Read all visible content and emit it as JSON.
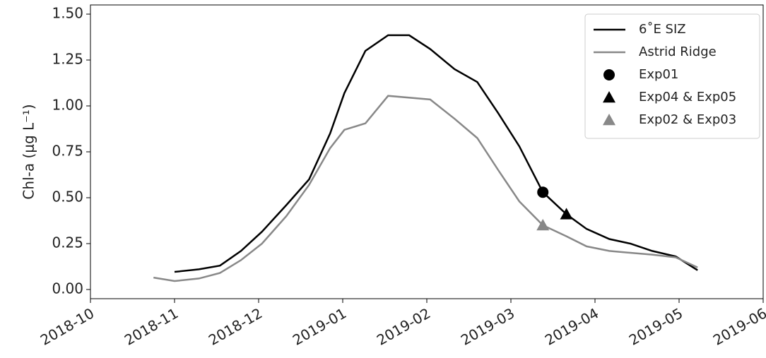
{
  "chart_data": {
    "type": "line",
    "ylabel": "Chl-a (μg L⁻¹)",
    "xlim": [
      0,
      8
    ],
    "xticks": [
      {
        "value": 0,
        "label": "2018-10"
      },
      {
        "value": 1,
        "label": "2018-11"
      },
      {
        "value": 2,
        "label": "2018-12"
      },
      {
        "value": 3,
        "label": "2019-01"
      },
      {
        "value": 4,
        "label": "2019-02"
      },
      {
        "value": 5,
        "label": "2019-03"
      },
      {
        "value": 6,
        "label": "2019-04"
      },
      {
        "value": 7,
        "label": "2019-05"
      },
      {
        "value": 8,
        "label": "2019-06"
      }
    ],
    "ylim": [
      -0.05,
      1.55
    ],
    "yticks": [
      {
        "value": 0,
        "label": "0.00"
      },
      {
        "value": 0.25,
        "label": "0.25"
      },
      {
        "value": 0.5,
        "label": "0.50"
      },
      {
        "value": 0.75,
        "label": "0.75"
      },
      {
        "value": 1,
        "label": "1.00"
      },
      {
        "value": 1.25,
        "label": "1.25"
      },
      {
        "value": 1.5,
        "label": "1.50"
      }
    ],
    "legend": "upper right",
    "series": [
      {
        "name": "6˚E SIZ",
        "color": "#000000",
        "marker": "line",
        "x": [
          1.0,
          1.29,
          1.54,
          1.79,
          2.04,
          2.33,
          2.6,
          2.85,
          3.02,
          3.27,
          3.54,
          3.79,
          4.04,
          4.33,
          4.6,
          4.85,
          5.1,
          5.38,
          5.66,
          5.9,
          6.17,
          6.42,
          6.68,
          6.96,
          7.22
        ],
        "values": [
          0.096,
          0.11,
          0.13,
          0.21,
          0.315,
          0.46,
          0.6,
          0.85,
          1.07,
          1.3,
          1.385,
          1.385,
          1.31,
          1.2,
          1.13,
          0.96,
          0.78,
          0.53,
          0.41,
          0.33,
          0.275,
          0.25,
          0.21,
          0.18,
          0.105
        ]
      },
      {
        "name": "Astrid Ridge",
        "color": "#888888",
        "marker": "line",
        "x": [
          0.75,
          1.0,
          1.29,
          1.54,
          1.79,
          2.04,
          2.33,
          2.6,
          2.85,
          3.02,
          3.27,
          3.54,
          4.04,
          4.33,
          4.6,
          4.85,
          5.1,
          5.38,
          5.66,
          5.9,
          6.17,
          6.42,
          6.68,
          6.96,
          7.22
        ],
        "values": [
          0.065,
          0.046,
          0.06,
          0.09,
          0.16,
          0.25,
          0.4,
          0.57,
          0.77,
          0.87,
          0.905,
          1.055,
          1.035,
          0.93,
          0.825,
          0.65,
          0.48,
          0.35,
          0.29,
          0.235,
          0.21,
          0.2,
          0.19,
          0.175,
          0.12
        ]
      },
      {
        "name": "Exp01",
        "color": "#000000",
        "marker": "circle",
        "x": [
          5.38
        ],
        "values": [
          0.53
        ]
      },
      {
        "name": "Exp04 & Exp05",
        "color": "#000000",
        "marker": "triangle",
        "x": [
          5.66
        ],
        "values": [
          0.41
        ]
      },
      {
        "name": "Exp02 & Exp03",
        "color": "#888888",
        "marker": "triangle",
        "x": [
          5.38
        ],
        "values": [
          0.35
        ]
      }
    ]
  }
}
